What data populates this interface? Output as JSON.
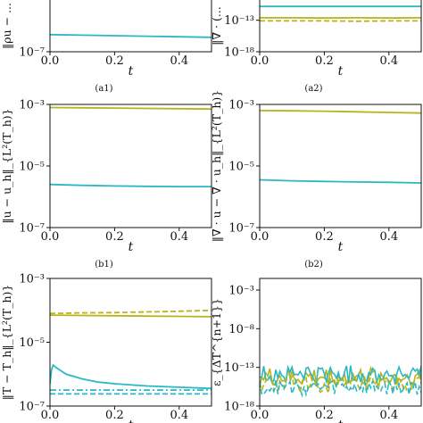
{
  "figure": {
    "cyan": "#2ab8c4",
    "olive": "#b8b41c"
  },
  "chart_data": [
    {
      "type": "line",
      "caption": "(a1)",
      "ylabel": "‖ρu − ...",
      "xlabel": "t",
      "xlim": [
        0,
        0.5
      ],
      "ylim_log10": [
        -7,
        -2
      ],
      "xticks": [
        {
          "v": 0,
          "label": "0.0"
        },
        {
          "v": 0.2,
          "label": "0.2"
        },
        {
          "v": 0.4,
          "label": "0.4"
        }
      ],
      "yticks": [
        {
          "v": -7,
          "label": "10⁻⁷"
        }
      ],
      "series": [
        {
          "color": "#2ab8c4",
          "dash": "solid",
          "x": [
            0,
            0.1,
            0.2,
            0.3,
            0.4,
            0.5
          ],
          "log10y": [
            -5.4,
            -5.45,
            -5.5,
            -5.55,
            -5.6,
            -5.65
          ]
        }
      ]
    },
    {
      "type": "line",
      "caption": "(a2)",
      "ylabel": "‖∇ · (...",
      "xlabel": "t",
      "xlim": [
        0,
        0.5
      ],
      "ylim_log10": [
        -18,
        -9.5
      ],
      "xticks": [
        {
          "v": 0,
          "label": "0.0"
        },
        {
          "v": 0.2,
          "label": "0.2"
        },
        {
          "v": 0.4,
          "label": "0.4"
        }
      ],
      "yticks": [
        {
          "v": -13,
          "label": "10⁻¹³"
        },
        {
          "v": -18,
          "label": "10⁻¹⁸"
        }
      ],
      "series": [
        {
          "color": "#b8b41c",
          "dash": "solid",
          "x": [
            0,
            0.1,
            0.2,
            0.3,
            0.4,
            0.5
          ],
          "log10y": [
            -12.6,
            -12.6,
            -12.65,
            -12.6,
            -12.65,
            -12.6
          ]
        },
        {
          "color": "#b8b41c",
          "dash": "dashed",
          "x": [
            0,
            0.1,
            0.2,
            0.3,
            0.4,
            0.5
          ],
          "log10y": [
            -13.1,
            -13.1,
            -13.1,
            -13.15,
            -13.1,
            -13.1
          ]
        },
        {
          "color": "#2ab8c4",
          "dash": "solid",
          "x": [
            0,
            0.1,
            0.2,
            0.3,
            0.4,
            0.5
          ],
          "log10y": [
            -10.8,
            -10.8,
            -10.8,
            -10.8,
            -10.8,
            -10.8
          ]
        }
      ]
    },
    {
      "type": "line",
      "caption": "(b1)",
      "ylabel": "‖u − u_h‖_{L²(T_h)}",
      "xlabel": "t",
      "xlim": [
        0,
        0.5
      ],
      "ylim_log10": [
        -7,
        -3
      ],
      "xticks": [
        {
          "v": 0,
          "label": "0.0"
        },
        {
          "v": 0.2,
          "label": "0.2"
        },
        {
          "v": 0.4,
          "label": "0.4"
        }
      ],
      "yticks": [
        {
          "v": -3,
          "label": "10⁻³"
        },
        {
          "v": -5,
          "label": "10⁻⁵"
        },
        {
          "v": -7,
          "label": "10⁻⁷"
        }
      ],
      "series": [
        {
          "color": "#b8b41c",
          "dash": "solid",
          "x": [
            0,
            0.1,
            0.2,
            0.3,
            0.4,
            0.5
          ],
          "log10y": [
            -3.1,
            -3.11,
            -3.12,
            -3.13,
            -3.14,
            -3.15
          ]
        },
        {
          "color": "#2ab8c4",
          "dash": "solid",
          "x": [
            0,
            0.1,
            0.2,
            0.3,
            0.4,
            0.5
          ],
          "log10y": [
            -5.6,
            -5.63,
            -5.65,
            -5.66,
            -5.67,
            -5.67
          ]
        }
      ]
    },
    {
      "type": "line",
      "caption": "(b2)",
      "ylabel": "‖∇ · u − ∇ · u_h‖_{L²(T_h)}",
      "xlabel": "t",
      "xlim": [
        0,
        0.5
      ],
      "ylim_log10": [
        -7,
        -3
      ],
      "xticks": [
        {
          "v": 0,
          "label": "0.0"
        },
        {
          "v": 0.2,
          "label": "0.2"
        },
        {
          "v": 0.4,
          "label": "0.4"
        }
      ],
      "yticks": [
        {
          "v": -3,
          "label": "10⁻³"
        },
        {
          "v": -5,
          "label": "10⁻⁵"
        },
        {
          "v": -7,
          "label": "10⁻⁷"
        }
      ],
      "series": [
        {
          "color": "#b8b41c",
          "dash": "solid",
          "x": [
            0,
            0.1,
            0.2,
            0.3,
            0.4,
            0.5
          ],
          "log10y": [
            -3.2,
            -3.21,
            -3.22,
            -3.24,
            -3.26,
            -3.28
          ]
        },
        {
          "color": "#2ab8c4",
          "dash": "solid",
          "x": [
            0,
            0.1,
            0.2,
            0.3,
            0.4,
            0.5
          ],
          "log10y": [
            -5.45,
            -5.48,
            -5.5,
            -5.52,
            -5.53,
            -5.55
          ]
        }
      ]
    },
    {
      "type": "line",
      "caption": "",
      "ylabel": "‖T − T_h‖_{L²(T_h)}",
      "xlabel": "t",
      "xlim": [
        0,
        0.5
      ],
      "ylim_log10": [
        -7,
        -3
      ],
      "xticks": [
        {
          "v": 0,
          "label": "0.0"
        },
        {
          "v": 0.2,
          "label": "0.2"
        },
        {
          "v": 0.4,
          "label": "0.4"
        }
      ],
      "yticks": [
        {
          "v": -3,
          "label": "10⁻³"
        },
        {
          "v": -5,
          "label": "10⁻⁵"
        },
        {
          "v": -7,
          "label": "10⁻⁷"
        }
      ],
      "series": [
        {
          "color": "#b8b41c",
          "dash": "dashed",
          "x": [
            0,
            0.1,
            0.2,
            0.3,
            0.4,
            0.5
          ],
          "log10y": [
            -4.1,
            -4.08,
            -4.07,
            -4.05,
            -4.03,
            -4.0
          ]
        },
        {
          "color": "#b8b41c",
          "dash": "solid",
          "x": [
            0,
            0.1,
            0.2,
            0.3,
            0.4,
            0.5
          ],
          "log10y": [
            -4.15,
            -4.16,
            -4.17,
            -4.18,
            -4.19,
            -4.2
          ]
        },
        {
          "color": "#2ab8c4",
          "dash": "solid",
          "x": [
            0,
            0.005,
            0.01,
            0.02,
            0.05,
            0.1,
            0.15,
            0.2,
            0.3,
            0.4,
            0.5
          ],
          "log10y": [
            -6.3,
            -5.85,
            -5.72,
            -5.8,
            -6.0,
            -6.15,
            -6.25,
            -6.3,
            -6.37,
            -6.41,
            -6.45
          ]
        },
        {
          "color": "#2ab8c4",
          "dash": "dashdot",
          "x": [
            0,
            0.1,
            0.2,
            0.3,
            0.4,
            0.5
          ],
          "log10y": [
            -6.5,
            -6.5,
            -6.5,
            -6.5,
            -6.5,
            -6.5
          ]
        },
        {
          "color": "#2ab8c4",
          "dash": "dashed",
          "x": [
            0,
            0.1,
            0.2,
            0.3,
            0.4,
            0.5
          ],
          "log10y": [
            -6.62,
            -6.62,
            -6.62,
            -6.62,
            -6.62,
            -6.62
          ]
        }
      ]
    },
    {
      "type": "line",
      "caption": "",
      "ylabel": "ε_{ΔT^{n+1}}",
      "xlabel": "t",
      "xlim": [
        0,
        0.5
      ],
      "ylim_log10": [
        -18,
        -1.5
      ],
      "xticks": [
        {
          "v": 0,
          "label": "0.0"
        },
        {
          "v": 0.2,
          "label": "0.2"
        },
        {
          "v": 0.4,
          "label": "0.4"
        }
      ],
      "yticks": [
        {
          "v": -3,
          "label": "10⁻³"
        },
        {
          "v": -8,
          "label": "10⁻⁸"
        },
        {
          "v": -13,
          "label": "10⁻¹³"
        },
        {
          "v": -18,
          "label": "10⁻¹⁸"
        }
      ],
      "series": [
        {
          "color": "#b8b41c",
          "dash": "solid",
          "noisy": true,
          "x": [
            0,
            0.5
          ],
          "log10y": [
            -14.3,
            -14.3
          ],
          "amp": 1.3
        },
        {
          "color": "#2ab8c4",
          "dash": "solid",
          "noisy": true,
          "x": [
            0,
            0.5
          ],
          "log10y": [
            -13.9,
            -13.9
          ],
          "amp": 1.2
        },
        {
          "color": "#b8b41c",
          "dash": "dashed",
          "noisy": true,
          "x": [
            0,
            0.5
          ],
          "log10y": [
            -15.3,
            -15.3
          ],
          "amp": 1.1
        },
        {
          "color": "#2ab8c4",
          "dash": "dashed",
          "noisy": true,
          "x": [
            0,
            0.5
          ],
          "log10y": [
            -15.6,
            -15.6
          ],
          "amp": 1.0
        }
      ]
    }
  ]
}
